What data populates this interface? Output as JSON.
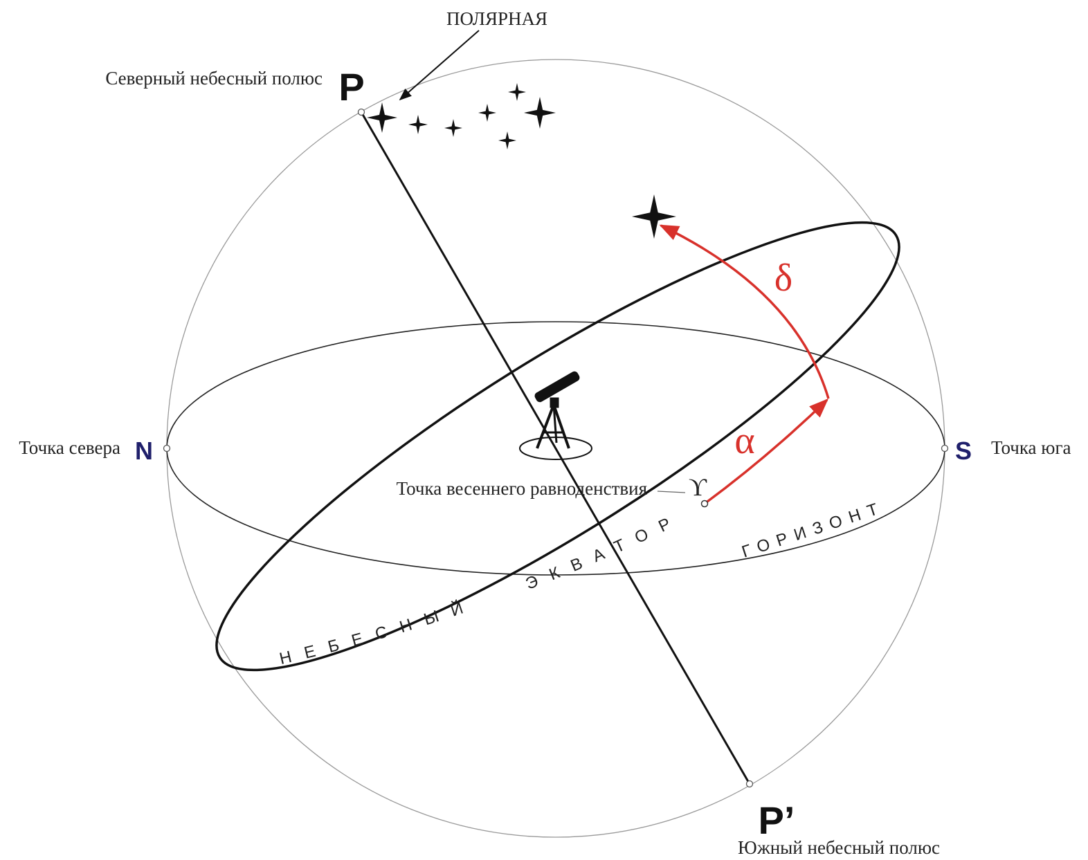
{
  "polaris": "ПОЛЯРНАЯ",
  "north_pole": {
    "letter": "P",
    "label": "Северный небесный полюс"
  },
  "south_pole": {
    "letter": "P’",
    "label": "Южный небесный полюс"
  },
  "north_point": {
    "letter": "N",
    "label": "Точка севера"
  },
  "south_point": {
    "letter": "S",
    "label": "Точка юга"
  },
  "vernal_equinox": {
    "symbol": "ϒ",
    "label": "Точка весеннего равноденствия"
  },
  "equator_label": "НЕБЕСНЫЙ   ЭКВАТОР",
  "horizon_label": "ГОРИЗОНТ",
  "right_ascension": "α",
  "declination": "δ"
}
